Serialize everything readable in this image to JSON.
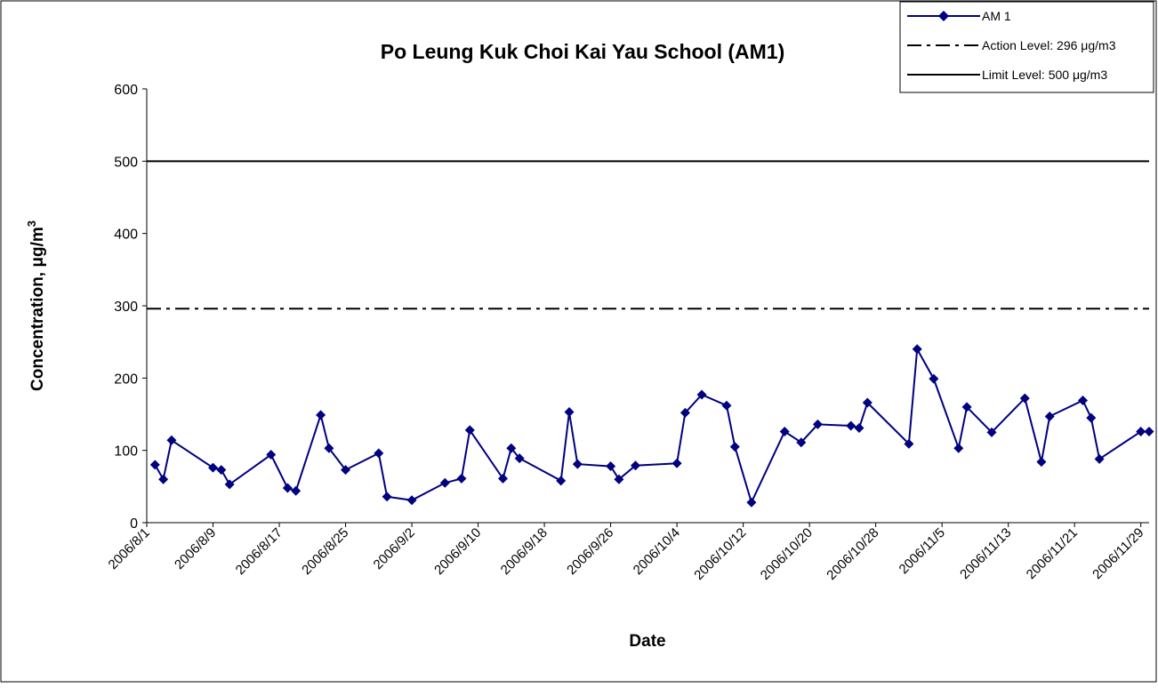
{
  "chart_data": {
    "type": "line",
    "title": "Po Leung Kuk Choi Kai Yau School (AM1)",
    "x_label": "Date",
    "y_label": "Concentration, μg/m",
    "y_label_superscript": "3",
    "x": [
      "2006/8/2",
      "2006/8/3",
      "2006/8/4",
      "2006/8/9",
      "2006/8/10",
      "2006/8/11",
      "2006/8/16",
      "2006/8/18",
      "2006/8/19",
      "2006/8/22",
      "2006/8/23",
      "2006/8/25",
      "2006/8/29",
      "2006/8/30",
      "2006/9/2",
      "2006/9/6",
      "2006/9/8",
      "2006/9/9",
      "2006/9/13",
      "2006/9/14",
      "2006/9/15",
      "2006/9/20",
      "2006/9/21",
      "2006/9/22",
      "2006/9/26",
      "2006/9/27",
      "2006/9/29",
      "2006/10/4",
      "2006/10/5",
      "2006/10/7",
      "2006/10/10",
      "2006/10/11",
      "2006/10/13",
      "2006/10/17",
      "2006/10/19",
      "2006/10/21",
      "2006/10/25",
      "2006/10/26",
      "2006/10/27",
      "2006/11/1",
      "2006/11/2",
      "2006/11/4",
      "2006/11/7",
      "2006/11/8",
      "2006/11/11",
      "2006/11/15",
      "2006/11/17",
      "2006/11/18",
      "2006/11/22",
      "2006/11/23",
      "2006/11/24",
      "2006/11/29",
      "2006/11/30"
    ],
    "series": [
      {
        "name": "AM 1",
        "color": "#000080",
        "values": [
          80,
          60,
          114,
          76,
          73,
          53,
          94,
          48,
          44,
          149,
          103,
          73,
          96,
          36,
          31,
          55,
          61,
          128,
          61,
          103,
          89,
          58,
          153,
          81,
          78,
          60,
          79,
          82,
          152,
          177,
          162,
          105,
          28,
          126,
          111,
          136,
          134,
          131,
          166,
          109,
          240,
          199,
          103,
          160,
          125,
          172,
          84,
          147,
          169,
          145,
          88,
          126,
          126
        ]
      }
    ],
    "reference_lines": [
      {
        "name": "Action Level: 296 μg/m3",
        "value": 296,
        "color": "#000000",
        "style": "dash-dot"
      },
      {
        "name": "Limit Level: 500 μg/m3",
        "value": 500,
        "color": "#000000",
        "style": "solid"
      }
    ],
    "xlim": [
      "2006/8/1",
      "2006/11/30"
    ],
    "xticks": [
      "2006/8/1",
      "2006/8/9",
      "2006/8/17",
      "2006/8/25",
      "2006/9/2",
      "2006/9/10",
      "2006/9/18",
      "2006/9/26",
      "2006/10/4",
      "2006/10/12",
      "2006/10/20",
      "2006/10/28",
      "2006/11/5",
      "2006/11/13",
      "2006/11/21",
      "2006/11/29"
    ],
    "ylim": [
      0,
      600
    ],
    "yticks": [
      0,
      100,
      200,
      300,
      400,
      500,
      600
    ],
    "grid": false,
    "legend": "top-right"
  }
}
